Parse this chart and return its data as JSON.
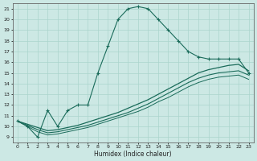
{
  "title": "",
  "xlabel": "Humidex (Indice chaleur)",
  "bg_color": "#cce8e4",
  "grid_color": "#aad4cc",
  "line_color": "#1a6b5a",
  "xlim": [
    -0.5,
    23.5
  ],
  "ylim": [
    8.5,
    21.5
  ],
  "xticks": [
    0,
    1,
    2,
    3,
    4,
    5,
    6,
    7,
    8,
    9,
    10,
    11,
    12,
    13,
    14,
    15,
    16,
    17,
    18,
    19,
    20,
    21,
    22,
    23
  ],
  "yticks": [
    9,
    10,
    11,
    12,
    13,
    14,
    15,
    16,
    17,
    18,
    19,
    20,
    21
  ],
  "series": [
    {
      "x": [
        0,
        1,
        2,
        3,
        4,
        5,
        6,
        7,
        8,
        9,
        10,
        11,
        12,
        13,
        14,
        15,
        16,
        17,
        18,
        19,
        20,
        21,
        22,
        23
      ],
      "y": [
        10.5,
        10.0,
        9.0,
        11.5,
        10.0,
        11.5,
        12.0,
        12.0,
        15.0,
        17.5,
        20.0,
        21.0,
        21.2,
        21.0,
        20.0,
        19.0,
        18.0,
        17.0,
        16.5,
        16.3,
        16.3,
        16.3,
        16.3,
        15.0
      ],
      "marker": "+",
      "markersize": 3.0,
      "lw": 0.8,
      "ls": "-"
    },
    {
      "x": [
        0,
        1,
        2,
        3,
        4,
        5,
        6,
        7,
        8,
        9,
        10,
        11,
        12,
        13,
        14,
        15,
        16,
        17,
        18,
        19,
        20,
        21,
        22,
        23
      ],
      "y": [
        10.5,
        10.2,
        9.9,
        9.6,
        9.7,
        9.9,
        10.1,
        10.4,
        10.7,
        11.0,
        11.3,
        11.7,
        12.1,
        12.5,
        13.0,
        13.5,
        14.0,
        14.5,
        15.0,
        15.3,
        15.5,
        15.7,
        15.8,
        15.2
      ],
      "marker": null,
      "markersize": 0,
      "lw": 0.9,
      "ls": "-"
    },
    {
      "x": [
        0,
        1,
        2,
        3,
        4,
        5,
        6,
        7,
        8,
        9,
        10,
        11,
        12,
        13,
        14,
        15,
        16,
        17,
        18,
        19,
        20,
        21,
        22,
        23
      ],
      "y": [
        10.5,
        10.1,
        9.7,
        9.4,
        9.5,
        9.7,
        9.9,
        10.1,
        10.4,
        10.7,
        11.0,
        11.3,
        11.7,
        12.1,
        12.6,
        13.1,
        13.6,
        14.1,
        14.5,
        14.8,
        15.0,
        15.1,
        15.2,
        14.8
      ],
      "marker": null,
      "markersize": 0,
      "lw": 0.8,
      "ls": "-"
    },
    {
      "x": [
        0,
        1,
        2,
        3,
        4,
        5,
        6,
        7,
        8,
        9,
        10,
        11,
        12,
        13,
        14,
        15,
        16,
        17,
        18,
        19,
        20,
        21,
        22,
        23
      ],
      "y": [
        10.5,
        10.0,
        9.5,
        9.2,
        9.3,
        9.5,
        9.7,
        9.9,
        10.2,
        10.5,
        10.8,
        11.1,
        11.4,
        11.8,
        12.3,
        12.7,
        13.2,
        13.7,
        14.1,
        14.4,
        14.6,
        14.7,
        14.8,
        14.4
      ],
      "marker": null,
      "markersize": 0,
      "lw": 0.7,
      "ls": "-"
    }
  ]
}
